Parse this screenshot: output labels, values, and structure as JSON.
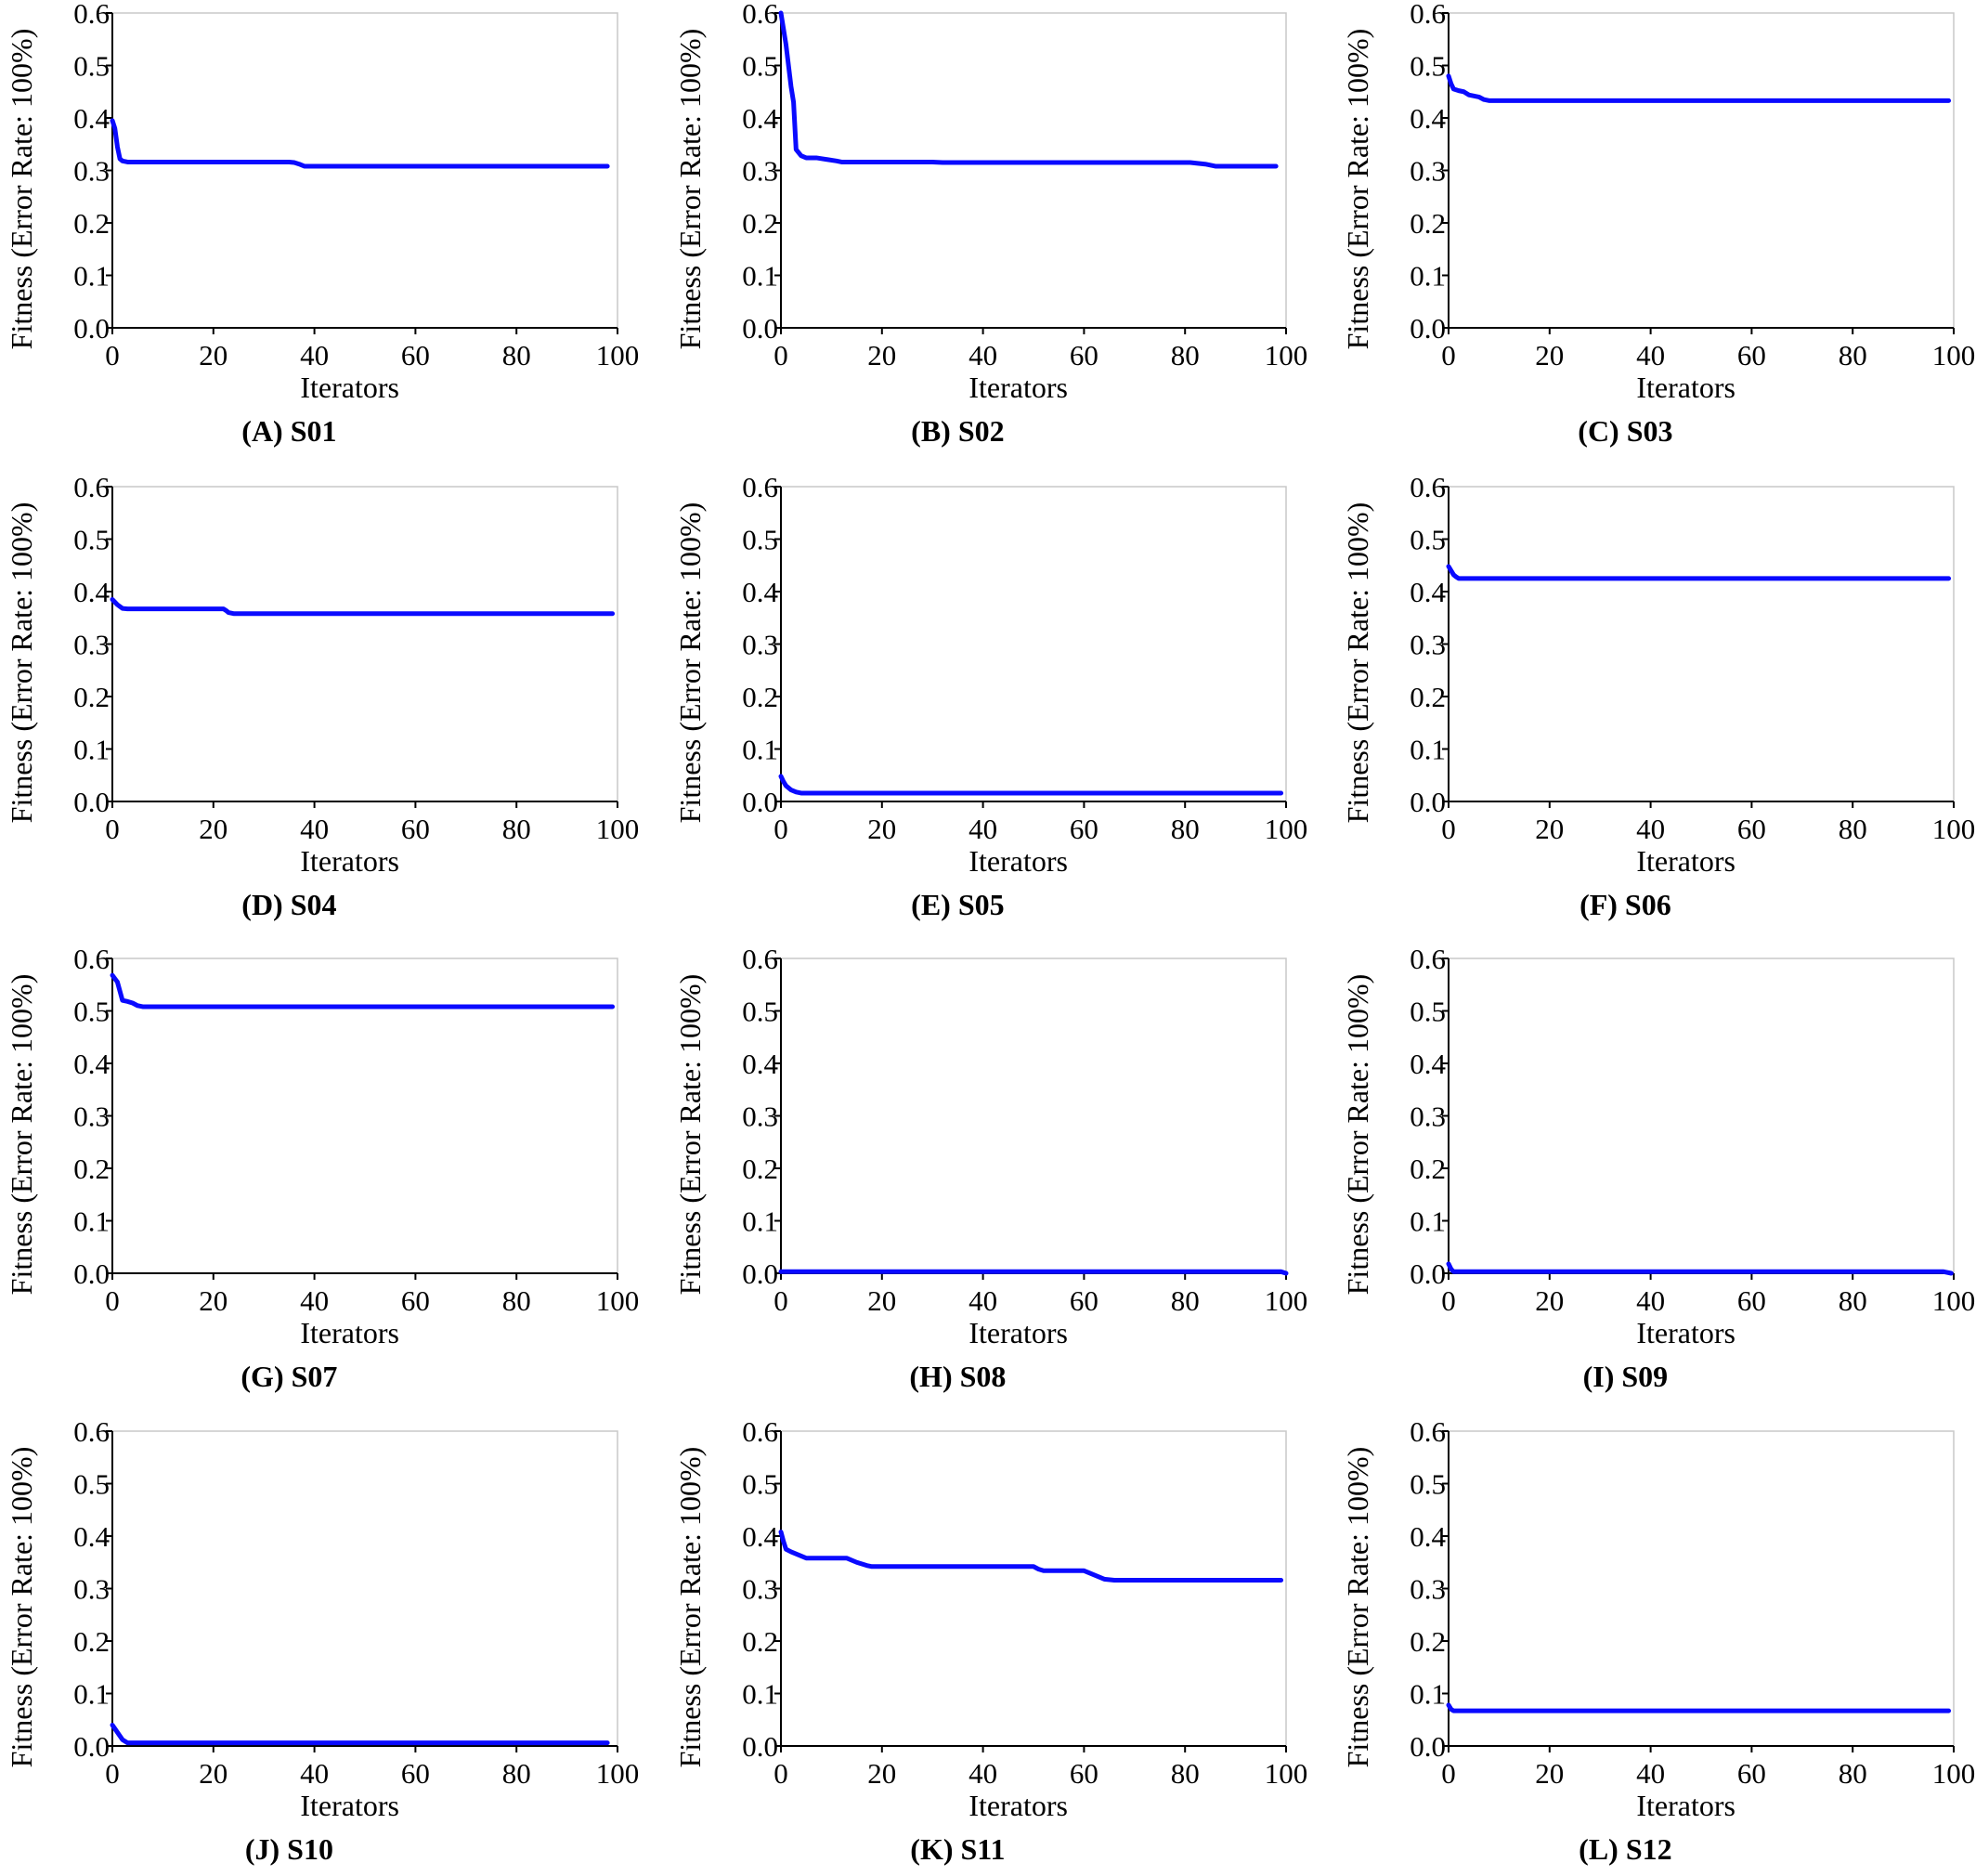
{
  "figure": {
    "line_color": "#0a0aff"
  },
  "chart_data": [
    {
      "type": "line",
      "caption": "(A)  S01",
      "xlabel": "Iterators",
      "ylabel": "Fitness (Error Rate: 100%)",
      "xlim": [
        0,
        100
      ],
      "ylim": [
        0,
        0.6
      ],
      "x_ticks": [
        "0",
        "20",
        "40",
        "60",
        "80",
        "100"
      ],
      "y_ticks": [
        "0.0",
        "0.1",
        "0.2",
        "0.3",
        "0.4",
        "0.5",
        "0.6"
      ],
      "series": [
        {
          "x": [
            0,
            0.5,
            1,
            1.5,
            2,
            3,
            20,
            35,
            36,
            37,
            38,
            50,
            98
          ],
          "y": [
            0.395,
            0.38,
            0.345,
            0.322,
            0.318,
            0.316,
            0.316,
            0.316,
            0.315,
            0.312,
            0.308,
            0.308,
            0.308
          ]
        }
      ]
    },
    {
      "type": "line",
      "caption": "(B)  S02",
      "xlabel": "Iterators",
      "ylabel": "Fitness (Error Rate: 100%)",
      "xlim": [
        0,
        100
      ],
      "ylim": [
        0,
        0.6
      ],
      "x_ticks": [
        "0",
        "20",
        "40",
        "60",
        "80",
        "100"
      ],
      "y_ticks": [
        "0.0",
        "0.1",
        "0.2",
        "0.3",
        "0.4",
        "0.5",
        "0.6"
      ],
      "series": [
        {
          "x": [
            0,
            0.5,
            1,
            1.5,
            2,
            2.5,
            3,
            4,
            5,
            7,
            9,
            11,
            12,
            30,
            32,
            60,
            81,
            84,
            86,
            98
          ],
          "y": [
            0.6,
            0.57,
            0.54,
            0.5,
            0.46,
            0.43,
            0.34,
            0.328,
            0.324,
            0.324,
            0.321,
            0.318,
            0.316,
            0.316,
            0.315,
            0.315,
            0.315,
            0.312,
            0.308,
            0.308
          ]
        }
      ]
    },
    {
      "type": "line",
      "caption": "(C)  S03",
      "xlabel": "Iterators",
      "ylabel": "Fitness (Error Rate: 100%)",
      "xlim": [
        0,
        100
      ],
      "ylim": [
        0,
        0.6
      ],
      "x_ticks": [
        "0",
        "20",
        "40",
        "60",
        "80",
        "100"
      ],
      "y_ticks": [
        "0.0",
        "0.1",
        "0.2",
        "0.3",
        "0.4",
        "0.5",
        "0.6"
      ],
      "series": [
        {
          "x": [
            0,
            0.5,
            1,
            2,
            3,
            4,
            5,
            6,
            7,
            8,
            99
          ],
          "y": [
            0.48,
            0.465,
            0.455,
            0.452,
            0.45,
            0.444,
            0.442,
            0.44,
            0.435,
            0.433,
            0.433
          ]
        }
      ]
    },
    {
      "type": "line",
      "caption": "(D)  S04",
      "xlabel": "Iterators",
      "ylabel": "Fitness (Error Rate: 100%)",
      "xlim": [
        0,
        100
      ],
      "ylim": [
        0,
        0.6
      ],
      "x_ticks": [
        "0",
        "20",
        "40",
        "60",
        "80",
        "100"
      ],
      "y_ticks": [
        "0.0",
        "0.1",
        "0.2",
        "0.3",
        "0.4",
        "0.5",
        "0.6"
      ],
      "series": [
        {
          "x": [
            0,
            1,
            2,
            3,
            22,
            22.5,
            23,
            24,
            99
          ],
          "y": [
            0.385,
            0.375,
            0.368,
            0.367,
            0.367,
            0.364,
            0.36,
            0.358,
            0.358
          ]
        }
      ]
    },
    {
      "type": "line",
      "caption": "(E)  S05",
      "xlabel": "Iterators",
      "ylabel": "Fitness (Error Rate: 100%)",
      "xlim": [
        0,
        100
      ],
      "ylim": [
        0,
        0.6
      ],
      "x_ticks": [
        "0",
        "20",
        "40",
        "60",
        "80",
        "100"
      ],
      "y_ticks": [
        "0.0",
        "0.1",
        "0.2",
        "0.3",
        "0.4",
        "0.5",
        "0.6"
      ],
      "series": [
        {
          "x": [
            0,
            0.5,
            1,
            2,
            3,
            4,
            99
          ],
          "y": [
            0.048,
            0.038,
            0.03,
            0.022,
            0.018,
            0.016,
            0.016
          ]
        }
      ]
    },
    {
      "type": "line",
      "caption": "(F)  S06",
      "xlabel": "Iterators",
      "ylabel": "Fitness (Error Rate: 100%)",
      "xlim": [
        0,
        100
      ],
      "ylim": [
        0,
        0.6
      ],
      "x_ticks": [
        "0",
        "20",
        "40",
        "60",
        "80",
        "100"
      ],
      "y_ticks": [
        "0.0",
        "0.1",
        "0.2",
        "0.3",
        "0.4",
        "0.5",
        "0.6"
      ],
      "series": [
        {
          "x": [
            0,
            0.5,
            1,
            1.5,
            2,
            99
          ],
          "y": [
            0.448,
            0.44,
            0.432,
            0.428,
            0.425,
            0.425
          ]
        }
      ]
    },
    {
      "type": "line",
      "caption": "(G)  S07",
      "xlabel": "Iterators",
      "ylabel": "Fitness (Error Rate: 100%)",
      "xlim": [
        0,
        100
      ],
      "ylim": [
        0,
        0.6
      ],
      "x_ticks": [
        "0",
        "20",
        "40",
        "60",
        "80",
        "100"
      ],
      "y_ticks": [
        "0.0",
        "0.1",
        "0.2",
        "0.3",
        "0.4",
        "0.5",
        "0.6"
      ],
      "series": [
        {
          "x": [
            0,
            1,
            2,
            3,
            4,
            5,
            6,
            99
          ],
          "y": [
            0.568,
            0.555,
            0.52,
            0.518,
            0.515,
            0.51,
            0.508,
            0.508
          ]
        }
      ]
    },
    {
      "type": "line",
      "caption": "(H)  S08",
      "xlabel": "Iterators",
      "ylabel": "Fitness (Error Rate: 100%)",
      "xlim": [
        0,
        100
      ],
      "ylim": [
        0,
        0.6
      ],
      "x_ticks": [
        "0",
        "20",
        "40",
        "60",
        "80",
        "100"
      ],
      "y_ticks": [
        "0.0",
        "0.1",
        "0.2",
        "0.3",
        "0.4",
        "0.5",
        "0.6"
      ],
      "series": [
        {
          "x": [
            0,
            99,
            100
          ],
          "y": [
            0.003,
            0.003,
            0.0
          ]
        }
      ]
    },
    {
      "type": "line",
      "caption": "(I)  S09",
      "xlabel": "Iterators",
      "ylabel": "Fitness (Error Rate: 100%)",
      "xlim": [
        0,
        100
      ],
      "ylim": [
        0,
        0.6
      ],
      "x_ticks": [
        "0",
        "20",
        "40",
        "60",
        "80",
        "100"
      ],
      "y_ticks": [
        "0.0",
        "0.1",
        "0.2",
        "0.3",
        "0.4",
        "0.5",
        "0.6"
      ],
      "series": [
        {
          "x": [
            0,
            0.5,
            1,
            98,
            99.5
          ],
          "y": [
            0.018,
            0.008,
            0.003,
            0.003,
            0.0
          ]
        }
      ]
    },
    {
      "type": "line",
      "caption": "(J)  S10",
      "xlabel": "Iterators",
      "ylabel": "Fitness (Error Rate: 100%)",
      "xlim": [
        0,
        100
      ],
      "ylim": [
        0,
        0.6
      ],
      "x_ticks": [
        "0",
        "20",
        "40",
        "60",
        "80",
        "100"
      ],
      "y_ticks": [
        "0.0",
        "0.1",
        "0.2",
        "0.3",
        "0.4",
        "0.5",
        "0.6"
      ],
      "series": [
        {
          "x": [
            0,
            1,
            2,
            3,
            98
          ],
          "y": [
            0.04,
            0.026,
            0.012,
            0.006,
            0.006
          ]
        }
      ]
    },
    {
      "type": "line",
      "caption": "(K)  S11",
      "xlabel": "Iterators",
      "ylabel": "Fitness (Error Rate: 100%)",
      "xlim": [
        0,
        100
      ],
      "ylim": [
        0,
        0.6
      ],
      "x_ticks": [
        "0",
        "20",
        "40",
        "60",
        "80",
        "100"
      ],
      "y_ticks": [
        "0.0",
        "0.1",
        "0.2",
        "0.3",
        "0.4",
        "0.5",
        "0.6"
      ],
      "series": [
        {
          "x": [
            0,
            0.5,
            1,
            2,
            3,
            4,
            5,
            13,
            15,
            17,
            18,
            50,
            51,
            52,
            60,
            62,
            64,
            66,
            99
          ],
          "y": [
            0.408,
            0.39,
            0.375,
            0.37,
            0.366,
            0.362,
            0.358,
            0.358,
            0.35,
            0.344,
            0.342,
            0.342,
            0.337,
            0.334,
            0.334,
            0.326,
            0.318,
            0.316,
            0.316
          ]
        }
      ]
    },
    {
      "type": "line",
      "caption": "(L)  S12",
      "xlabel": "Iterators",
      "ylabel": "Fitness (Error Rate: 100%)",
      "xlim": [
        0,
        100
      ],
      "ylim": [
        0,
        0.6
      ],
      "x_ticks": [
        "0",
        "20",
        "40",
        "60",
        "80",
        "100"
      ],
      "y_ticks": [
        "0.0",
        "0.1",
        "0.2",
        "0.3",
        "0.4",
        "0.5",
        "0.6"
      ],
      "series": [
        {
          "x": [
            0,
            0.5,
            1,
            99
          ],
          "y": [
            0.078,
            0.07,
            0.067,
            0.067
          ]
        }
      ]
    }
  ]
}
